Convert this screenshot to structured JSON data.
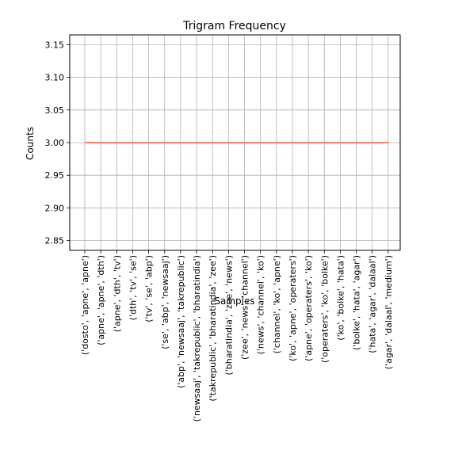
{
  "chart_data": {
    "type": "line",
    "title": "Trigram Frequency",
    "xlabel": "Samples",
    "ylabel": "Counts",
    "ylim": [
      2.835,
      3.165
    ],
    "yticks": [
      "2.85",
      "2.90",
      "2.95",
      "3.00",
      "3.05",
      "3.10",
      "3.15"
    ],
    "grid": true,
    "line_color": "#fa8072",
    "categories": [
      "('dosto', 'apne', 'apne')",
      "('apne', 'apne', 'dth')",
      "('apne', 'dth', 'tv')",
      "('dth', 'tv', 'se')",
      "('tv', 'se', 'abp')",
      "('se', 'abp', 'newsaaj')",
      "('abp', 'newsaaj', 'takrepublic')",
      "('newsaaj', 'takrepublic', 'bharatindia')",
      "('takrepublic', 'bharatindia', 'zee')",
      "('bharatindia', 'zee', 'news')",
      "('zee', 'news', 'channel')",
      "('news', 'channel', 'ko')",
      "('channel', 'ko', 'apne')",
      "('ko', 'apne', 'operaters')",
      "('apne', 'operaters', 'ko')",
      "('operaters', 'ko', 'bolke')",
      "('ko', 'bolke', 'hata')",
      "('bolke', 'hata', 'agar')",
      "('hata', 'agar', 'dalaal')",
      "('agar', 'dalaal', 'medium')"
    ],
    "values": [
      3,
      3,
      3,
      3,
      3,
      3,
      3,
      3,
      3,
      3,
      3,
      3,
      3,
      3,
      3,
      3,
      3,
      3,
      3,
      3
    ]
  }
}
